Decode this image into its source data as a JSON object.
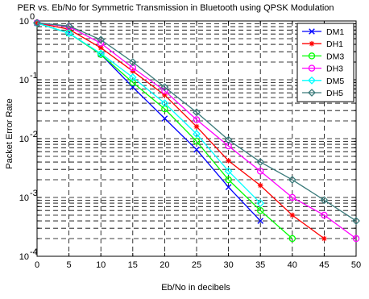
{
  "chart_data": {
    "type": "line",
    "title": "PER vs. Eb/No for Symmetric Transmission in Bluetooth using QPSK Modulation",
    "xlabel": "Eb/No in decibels",
    "ylabel": "Packet Error Rate",
    "xlim": [
      0,
      50
    ],
    "ylim": [
      0.0001,
      1
    ],
    "yscale": "log",
    "grid": true,
    "legend_position": "top-right",
    "x_ticks": [
      "0",
      "5",
      "10",
      "15",
      "20",
      "25",
      "30",
      "35",
      "40",
      "45",
      "50"
    ],
    "y_ticks": [
      {
        "base": "10",
        "exp": "0"
      },
      {
        "base": "10",
        "exp": "-1"
      },
      {
        "base": "10",
        "exp": "-2"
      },
      {
        "base": "10",
        "exp": "-3"
      },
      {
        "base": "10",
        "exp": "-4"
      }
    ],
    "series": [
      {
        "name": "DM1",
        "color": "#0000ff",
        "marker": "x",
        "x": [
          0,
          5,
          10,
          15,
          20,
          25,
          30,
          35
        ],
        "y": [
          0.92,
          0.62,
          0.27,
          0.075,
          0.022,
          0.0065,
          0.0015,
          0.0004
        ]
      },
      {
        "name": "DH1",
        "color": "#ff0000",
        "marker": "star",
        "x": [
          0,
          5,
          10,
          15,
          20,
          25,
          30,
          35,
          40,
          45
        ],
        "y": [
          0.93,
          0.72,
          0.35,
          0.14,
          0.055,
          0.016,
          0.0042,
          0.0016,
          0.0005,
          0.0002
        ]
      },
      {
        "name": "DM3",
        "color": "#00ff00",
        "marker": "circle",
        "x": [
          0,
          5,
          10,
          15,
          20,
          25,
          30,
          35,
          40
        ],
        "y": [
          0.92,
          0.62,
          0.27,
          0.09,
          0.032,
          0.009,
          0.002,
          0.0006,
          0.0002
        ]
      },
      {
        "name": "DH3",
        "color": "#ff00ff",
        "marker": "circle",
        "x": [
          0,
          5,
          10,
          15,
          20,
          25,
          30,
          35,
          40,
          45,
          50
        ],
        "y": [
          0.93,
          0.8,
          0.42,
          0.16,
          0.065,
          0.021,
          0.0075,
          0.0028,
          0.001,
          0.0005,
          0.0002
        ]
      },
      {
        "name": "DM5",
        "color": "#00ffff",
        "marker": "diamond",
        "x": [
          0,
          5,
          10,
          15,
          20,
          25,
          30,
          35
        ],
        "y": [
          0.92,
          0.62,
          0.28,
          0.11,
          0.04,
          0.012,
          0.0028,
          0.0008
        ]
      },
      {
        "name": "DH5",
        "color": "#3a7a7a",
        "marker": "diamond",
        "x": [
          0,
          5,
          10,
          15,
          20,
          25,
          30,
          35,
          40,
          45,
          50
        ],
        "y": [
          0.93,
          0.82,
          0.48,
          0.2,
          0.075,
          0.028,
          0.0095,
          0.004,
          0.002,
          0.0009,
          0.0004
        ]
      }
    ]
  }
}
